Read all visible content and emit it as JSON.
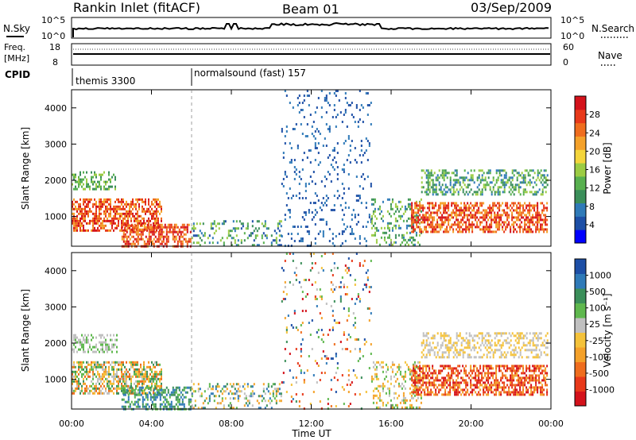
{
  "header": {
    "title": "Rankin Inlet (fitACF)",
    "beam": "Beam 01",
    "date": "03/Sep/2009"
  },
  "nsky_panel": {
    "left_label": "N.Sky",
    "right_label": "N.Search",
    "left_ticks": [
      "10^5",
      "10^0"
    ],
    "right_ticks": [
      "10^5",
      "10^0"
    ]
  },
  "freq_panel": {
    "left_label_1": "Freq.",
    "left_label_2": "[MHz]",
    "right_label": "Nave",
    "left_ticks": [
      "18",
      "8"
    ],
    "right_ticks": [
      "60",
      "0"
    ]
  },
  "cpid_panel": {
    "label": "CPID",
    "modes": [
      {
        "name": "themis 3300",
        "start_hour": 0
      },
      {
        "name": "normalsound (fast) 157",
        "start_hour": 6
      }
    ]
  },
  "chart_data": [
    {
      "type": "heatmap",
      "title": "",
      "ylabel": "Slant Range [km]",
      "xlabel": "",
      "x_ticks": [
        "00:00",
        "04:00",
        "08:00",
        "12:00",
        "16:00",
        "20:00",
        "00:00"
      ],
      "y_ticks": [
        1000,
        2000,
        3000,
        4000
      ],
      "xlim_hours": [
        0,
        24
      ],
      "ylim_km": [
        180,
        4500
      ],
      "colorbar": {
        "label": "Power [dB]",
        "ticks": [
          "28",
          "24",
          "20",
          "16",
          "12",
          "8",
          "4"
        ],
        "colors": [
          "#0000ff",
          "#1d4fa6",
          "#2f7ab8",
          "#3b8f5a",
          "#58b04f",
          "#9ccc43",
          "#f4d53b",
          "#f4a12a",
          "#ef6d1e",
          "#e8391a",
          "#d4121b"
        ]
      }
    },
    {
      "type": "heatmap",
      "title": "",
      "ylabel": "Slant Range [km]",
      "xlabel": "Time UT",
      "x_ticks": [
        "00:00",
        "04:00",
        "08:00",
        "12:00",
        "16:00",
        "20:00",
        "00:00"
      ],
      "y_ticks": [
        1000,
        2000,
        3000,
        4000
      ],
      "xlim_hours": [
        0,
        24
      ],
      "ylim_km": [
        180,
        4500
      ],
      "colorbar": {
        "label": "Velocity [m s⁻¹]",
        "ticks": [
          "1000",
          "500",
          "100",
          "25",
          "-25",
          "-100",
          "-500",
          "-1000"
        ],
        "colors": [
          "#d4121b",
          "#e8391a",
          "#ef6d1e",
          "#f4a12a",
          "#f4c23a",
          "#c0c0c0",
          "#5fb84e",
          "#3b8f5a",
          "#2f7ab8",
          "#1d4fa6"
        ]
      }
    }
  ],
  "scatter_regions": [
    {
      "panel": 0,
      "t0": 0.0,
      "t1": 2.3,
      "r0": 1750,
      "r1": 2250,
      "dens": 0.45,
      "cmin": 3,
      "cmax": 5
    },
    {
      "panel": 0,
      "t0": 0.0,
      "t1": 4.5,
      "r0": 600,
      "r1": 1500,
      "dens": 0.6,
      "cmin": 7,
      "cmax": 10
    },
    {
      "panel": 0,
      "t0": 2.5,
      "t1": 6.0,
      "r0": 200,
      "r1": 800,
      "dens": 0.6,
      "cmin": 7,
      "cmax": 10
    },
    {
      "panel": 0,
      "t0": 6.0,
      "t1": 10.5,
      "r0": 200,
      "r1": 900,
      "dens": 0.25,
      "cmin": 1,
      "cmax": 5
    },
    {
      "panel": 0,
      "t0": 10.5,
      "t1": 15.0,
      "r0": 200,
      "r1": 4500,
      "dens": 0.09,
      "cmin": 1,
      "cmax": 2
    },
    {
      "panel": 0,
      "t0": 15.0,
      "t1": 17.5,
      "r0": 200,
      "r1": 1500,
      "dens": 0.3,
      "cmin": 2,
      "cmax": 5
    },
    {
      "panel": 0,
      "t0": 17.0,
      "t1": 23.8,
      "r0": 600,
      "r1": 1400,
      "dens": 0.6,
      "cmin": 7,
      "cmax": 10
    },
    {
      "panel": 0,
      "t0": 17.5,
      "t1": 23.8,
      "r0": 1600,
      "r1": 2300,
      "dens": 0.4,
      "cmin": 2,
      "cmax": 5
    },
    {
      "panel": 1,
      "t0": 0.0,
      "t1": 2.3,
      "r0": 1750,
      "r1": 2250,
      "dens": 0.45,
      "cmin": 5,
      "cmax": 6
    },
    {
      "panel": 1,
      "t0": 0.0,
      "t1": 4.5,
      "r0": 600,
      "r1": 1500,
      "dens": 0.6,
      "cmin": 2,
      "cmax": 7
    },
    {
      "panel": 1,
      "t0": 2.5,
      "t1": 6.0,
      "r0": 200,
      "r1": 800,
      "dens": 0.5,
      "cmin": 6,
      "cmax": 8
    },
    {
      "panel": 1,
      "t0": 6.0,
      "t1": 10.5,
      "r0": 200,
      "r1": 900,
      "dens": 0.25,
      "cmin": 3,
      "cmax": 8
    },
    {
      "panel": 1,
      "t0": 10.5,
      "t1": 15.0,
      "r0": 200,
      "r1": 4500,
      "dens": 0.08,
      "cmin": 0,
      "cmax": 9
    },
    {
      "panel": 1,
      "t0": 15.0,
      "t1": 17.5,
      "r0": 200,
      "r1": 1500,
      "dens": 0.3,
      "cmin": 3,
      "cmax": 6
    },
    {
      "panel": 1,
      "t0": 17.0,
      "t1": 23.8,
      "r0": 600,
      "r1": 1400,
      "dens": 0.6,
      "cmin": 0,
      "cmax": 3
    },
    {
      "panel": 1,
      "t0": 17.5,
      "t1": 23.8,
      "r0": 1600,
      "r1": 2300,
      "dens": 0.4,
      "cmin": 4,
      "cmax": 5
    }
  ]
}
